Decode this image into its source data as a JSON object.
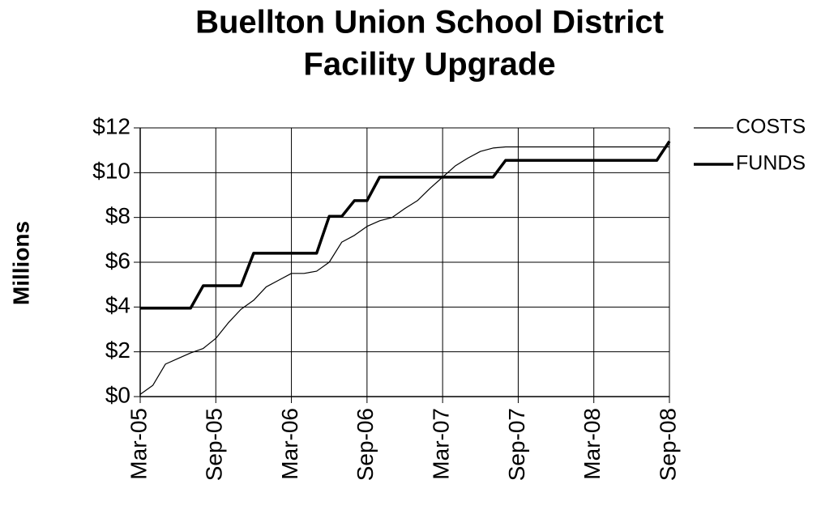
{
  "chart_data": {
    "type": "line",
    "title": [
      "Buellton Union School District",
      "Facility Upgrade"
    ],
    "ylabel": "Millions",
    "x": [
      "2005-03",
      "2005-04",
      "2005-05",
      "2005-06",
      "2005-07",
      "2005-08",
      "2005-09",
      "2005-10",
      "2005-11",
      "2005-12",
      "2006-01",
      "2006-02",
      "2006-03",
      "2006-04",
      "2006-05",
      "2006-06",
      "2006-07",
      "2006-08",
      "2006-09",
      "2006-10",
      "2006-11",
      "2006-12",
      "2007-01",
      "2007-02",
      "2007-03",
      "2007-04",
      "2007-05",
      "2007-06",
      "2007-07",
      "2007-08",
      "2007-09",
      "2007-10",
      "2007-11",
      "2007-12",
      "2008-01",
      "2008-02",
      "2008-03",
      "2008-04",
      "2008-05",
      "2008-06",
      "2008-07",
      "2008-08",
      "2008-09"
    ],
    "series": [
      {
        "name": "COSTS",
        "color": "#000000",
        "width": 1.2,
        "values": [
          0.1,
          0.5,
          1.45,
          1.7,
          1.95,
          2.15,
          2.6,
          3.3,
          3.9,
          4.3,
          4.9,
          5.2,
          5.5,
          5.5,
          5.6,
          6.0,
          6.9,
          7.2,
          7.6,
          7.85,
          8.0,
          8.4,
          8.75,
          9.3,
          9.8,
          10.3,
          10.65,
          10.95,
          11.1,
          11.15,
          11.15,
          11.15,
          11.15,
          11.15,
          11.15,
          11.15,
          11.15,
          11.15,
          11.15,
          11.15,
          11.15,
          11.15,
          11.15
        ]
      },
      {
        "name": "FUNDS",
        "color": "#000000",
        "width": 3.5,
        "values": [
          3.95,
          3.95,
          3.95,
          3.95,
          3.95,
          4.95,
          4.95,
          4.95,
          4.95,
          6.4,
          6.4,
          6.4,
          6.4,
          6.4,
          6.4,
          8.05,
          8.05,
          8.75,
          8.75,
          9.8,
          9.8,
          9.8,
          9.8,
          9.8,
          9.8,
          9.8,
          9.8,
          9.8,
          9.8,
          10.55,
          10.55,
          10.55,
          10.55,
          10.55,
          10.55,
          10.55,
          10.55,
          10.55,
          10.55,
          10.55,
          10.55,
          10.55,
          11.4
        ]
      }
    ],
    "xlim": [
      "2005-03",
      "2008-09"
    ],
    "xticks": [
      {
        "value": "2005-03",
        "label": "Mar-05"
      },
      {
        "value": "2005-09",
        "label": "Sep-05"
      },
      {
        "value": "2006-03",
        "label": "Mar-06"
      },
      {
        "value": "2006-09",
        "label": "Sep-06"
      },
      {
        "value": "2007-03",
        "label": "Mar-07"
      },
      {
        "value": "2007-09",
        "label": "Sep-07"
      },
      {
        "value": "2008-03",
        "label": "Mar-08"
      },
      {
        "value": "2008-09",
        "label": "Sep-08"
      }
    ],
    "ylim": [
      0,
      12
    ],
    "yticks": [
      {
        "value": 0,
        "label": "$0"
      },
      {
        "value": 2,
        "label": "$2"
      },
      {
        "value": 4,
        "label": "$4"
      },
      {
        "value": 6,
        "label": "$6"
      },
      {
        "value": 8,
        "label": "$8"
      },
      {
        "value": 10,
        "label": "$10"
      },
      {
        "value": 12,
        "label": "$12"
      }
    ],
    "grid": true,
    "legend": "right"
  }
}
